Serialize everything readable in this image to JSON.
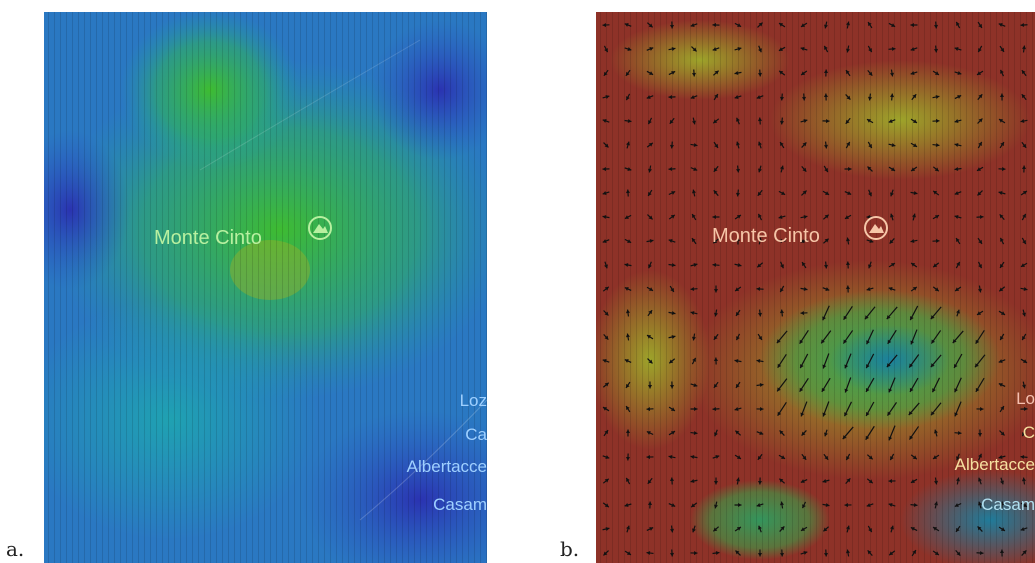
{
  "panels": [
    {
      "label": "a.",
      "peak": "Monte Cinto",
      "places": [
        "Loz",
        "Ca",
        "Albertacce",
        "Casam"
      ]
    },
    {
      "label": "b.",
      "peak": "Monte Cinto",
      "places": [
        "Lo",
        "C",
        "Albertacce",
        "Casam"
      ]
    }
  ]
}
